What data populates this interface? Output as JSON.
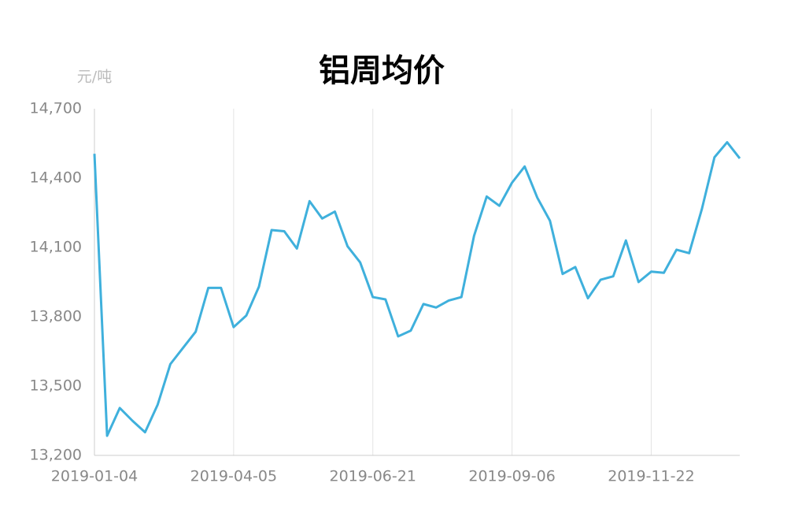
{
  "chart_data": {
    "type": "line",
    "title": "铝周均价",
    "y_unit": "元/吨",
    "categories": [
      "2019-01-04",
      null,
      null,
      null,
      null,
      null,
      null,
      null,
      null,
      null,
      null,
      "2019-04-05",
      null,
      null,
      null,
      null,
      null,
      null,
      null,
      null,
      null,
      null,
      "2019-06-21",
      null,
      null,
      null,
      null,
      null,
      null,
      null,
      null,
      null,
      null,
      "2019-09-06",
      null,
      null,
      null,
      null,
      null,
      null,
      null,
      null,
      null,
      null,
      "2019-11-22",
      null,
      null,
      null,
      null,
      null,
      null,
      null
    ],
    "series": [
      {
        "name": "铝周均价",
        "color": "#3fb0dc",
        "values": [
          14505,
          13285,
          13405,
          13350,
          13300,
          13420,
          13595,
          13665,
          13735,
          13925,
          13925,
          13755,
          13805,
          13930,
          14175,
          14170,
          14095,
          14300,
          14225,
          14255,
          14105,
          14035,
          13885,
          13875,
          13715,
          13740,
          13855,
          13840,
          13870,
          13885,
          14150,
          14320,
          14280,
          14380,
          14450,
          14315,
          14215,
          13985,
          14015,
          13880,
          13960,
          13975,
          14130,
          13950,
          13995,
          13990,
          14090,
          14075,
          14265,
          14490,
          14555,
          14485
        ]
      }
    ],
    "ylim": [
      13200,
      14700
    ],
    "yticks": [
      {
        "value": 13200,
        "label": "13,200"
      },
      {
        "value": 13500,
        "label": "13,500"
      },
      {
        "value": 13800,
        "label": "13,800"
      },
      {
        "value": 14100,
        "label": "14,100"
      },
      {
        "value": 14400,
        "label": "14,400"
      },
      {
        "value": 14700,
        "label": "14,700"
      }
    ],
    "grid": true
  }
}
